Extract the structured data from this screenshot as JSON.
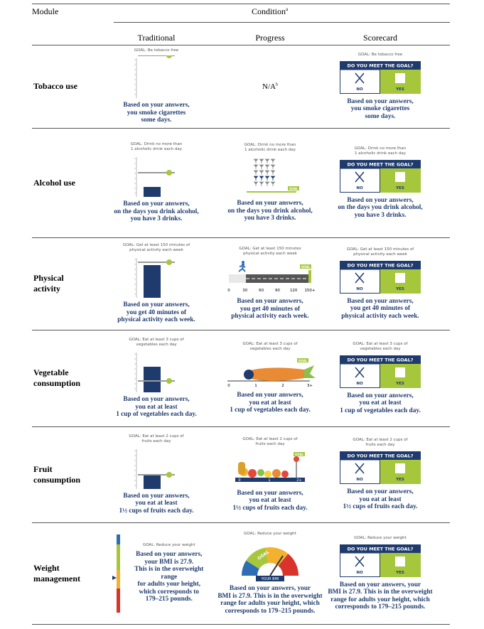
{
  "header": {
    "module": "Module",
    "condition": "Condition",
    "condition_note": "a",
    "columns": [
      "Traditional",
      "Progress",
      "Scorecard"
    ]
  },
  "scorecard": {
    "question": "DO YOU MEET THE GOAL?",
    "no": "NO",
    "yes": "YES"
  },
  "rows": [
    {
      "module": [
        "Tobacco use"
      ],
      "traditional": {
        "goal": [
          "GOAL: Be tobacco free"
        ],
        "message": [
          "Based on your answers,",
          "you smoke cigarettes",
          "some days."
        ]
      },
      "progress": {
        "text": "N/A",
        "note": "b"
      },
      "scorecard": {
        "goal": [
          "GOAL: Be tobacco free"
        ],
        "message": [
          "Based on your answers,",
          "you smoke cigarettes",
          "some days."
        ]
      }
    },
    {
      "module": [
        "Alcohol use"
      ],
      "traditional": {
        "goal": [
          "GOAL: Drink no more than",
          "1 alcoholic drink each day"
        ],
        "message": [
          "Based on your answers,",
          "on the days you drink alcohol,",
          "you have 3 drinks."
        ]
      },
      "progress": {
        "goal": [
          "GOAL: Drink no more than",
          "1 alcoholic drink each day"
        ],
        "message": [
          "Based on your answers,",
          "on the days you drink alcohol,",
          "you have 3 drinks."
        ],
        "figure": [
          "GOAL"
        ]
      },
      "scorecard": {
        "goal": [
          "GOAL: Drink no more than",
          "1 alcoholic drink each day"
        ],
        "message": [
          "Based on your answers,",
          "on the days you drink alcohol,",
          "you have 3 drinks."
        ]
      }
    },
    {
      "module": [
        "Physical",
        "activity"
      ],
      "traditional": {
        "goal": [
          "GOAL: Get at least 150 minutes of",
          "physical activity each week"
        ],
        "message": [
          "Based on your answers,",
          "you get 40 minutes of",
          "physical activity each week."
        ]
      },
      "progress": {
        "goal": [
          "GOAL: Get at least 150 minutes",
          "physical activity each week"
        ],
        "message": [
          "Based on your answers,",
          "you get 40 minutes of",
          "physical activity each week."
        ],
        "ticks": [
          0,
          30,
          60,
          90,
          120,
          "150+"
        ],
        "figure": [
          "GOAL"
        ]
      },
      "scorecard": {
        "goal": [
          "GOAL: Get at least 150 minutes of",
          "physical activity each week"
        ],
        "message": [
          "Based on your answers,",
          "you get 40 minutes of",
          "physical activity each week."
        ]
      }
    },
    {
      "module": [
        "Vegetable",
        "consumption"
      ],
      "traditional": {
        "goal": [
          "GOAL: Eat at least 3 cups of",
          "vegetables each day"
        ],
        "message": [
          "Based on your answers,",
          "you eat at least",
          "1 cup of vegetables each day."
        ]
      },
      "progress": {
        "goal": [
          "GOAL: Eat at least 3 cups of",
          "vegetables each day"
        ],
        "message": [
          "Based on your answers,",
          "you eat at least",
          "1 cup of vegetables each day."
        ],
        "ticks": [
          0,
          1,
          2,
          "3+"
        ],
        "figure": [
          "GOAL"
        ]
      },
      "scorecard": {
        "goal": [
          "GOAL: Eat at least 3 cups of",
          "vegetables each day"
        ],
        "message": [
          "Based on your answers,",
          "you eat at least",
          "1 cup of vegetables each day."
        ]
      }
    },
    {
      "module": [
        "Fruit",
        "consumption"
      ],
      "traditional": {
        "goal": [
          "GOAL: Eat at least 2 cups of",
          "fruits each day"
        ],
        "message": [
          "Based on your answers,",
          "you eat at least",
          "1½ cups of fruits each day."
        ]
      },
      "progress": {
        "goal": [
          "GOAL: Eat at least 2 cups of",
          "fruits each day"
        ],
        "message": [
          "Based on your answers,",
          "you eat at least",
          "1½ cups of fruits each day."
        ],
        "ticks": [
          0,
          1,
          "2+"
        ],
        "figure": [
          "GOAL"
        ]
      },
      "scorecard": {
        "goal": [
          "GOAL: Eat at least 2 cups of",
          "fruits each day"
        ],
        "message": [
          "Based on your answers,",
          "you eat at least",
          "1½ cups of fruits each day."
        ]
      }
    },
    {
      "module": [
        "Weight",
        "management"
      ],
      "traditional": {
        "goal": [
          "GOAL: Reduce your weight"
        ],
        "message": [
          "Based on your answers,",
          "your BMI is 27.9.",
          "This is in the overweight range",
          "for adults your height,",
          "which corresponds to",
          "179–215 pounds."
        ]
      },
      "progress": {
        "goal": [
          "GOAL: Reduce your weight"
        ],
        "message": [
          "Based on your answers, your",
          "BMI is 27.9. This is in the overweight",
          "range for adults your height, which",
          "corresponds to 179–215 pounds."
        ],
        "figure": [
          "GOAL",
          "YOUR BMI"
        ]
      },
      "scorecard": {
        "goal": [
          "GOAL: Reduce your weight"
        ],
        "message": [
          "Based on your answers, your",
          "BMI is 27.9. This is in the overweight",
          "range for adults your height, which",
          "corresponds to 179–215 pounds."
        ]
      }
    }
  ]
}
